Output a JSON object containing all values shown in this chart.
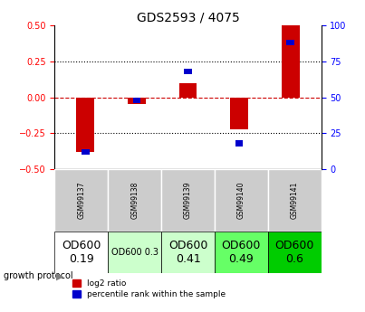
{
  "title": "GDS2593 / 4075",
  "samples": [
    "GSM99137",
    "GSM99138",
    "GSM99139",
    "GSM99140",
    "GSM99141"
  ],
  "log2_ratio": [
    -0.38,
    -0.05,
    0.1,
    -0.22,
    0.5
  ],
  "percentile_rank": [
    12,
    48,
    68,
    18,
    88
  ],
  "ylim_left": [
    -0.5,
    0.5
  ],
  "ylim_right": [
    0,
    100
  ],
  "yticks_left": [
    -0.5,
    -0.25,
    0,
    0.25,
    0.5
  ],
  "yticks_right": [
    0,
    25,
    50,
    75,
    100
  ],
  "bar_color_red": "#cc0000",
  "bar_color_blue": "#0000cc",
  "dotted_line_color": "#000000",
  "zero_line_color": "#cc0000",
  "growth_protocol_labels": [
    "OD600\n0.19",
    "OD600 0.3",
    "OD600\n0.41",
    "OD600\n0.49",
    "OD600\n0.6"
  ],
  "growth_protocol_colors": [
    "#ffffff",
    "#ccffcc",
    "#ccffcc",
    "#66ff66",
    "#00cc00"
  ],
  "growth_protocol_font_sizes": [
    9,
    7,
    9,
    9,
    9
  ],
  "sample_header_bg": "#cccccc",
  "legend_red_label": "log2 ratio",
  "legend_blue_label": "percentile rank within the sample"
}
